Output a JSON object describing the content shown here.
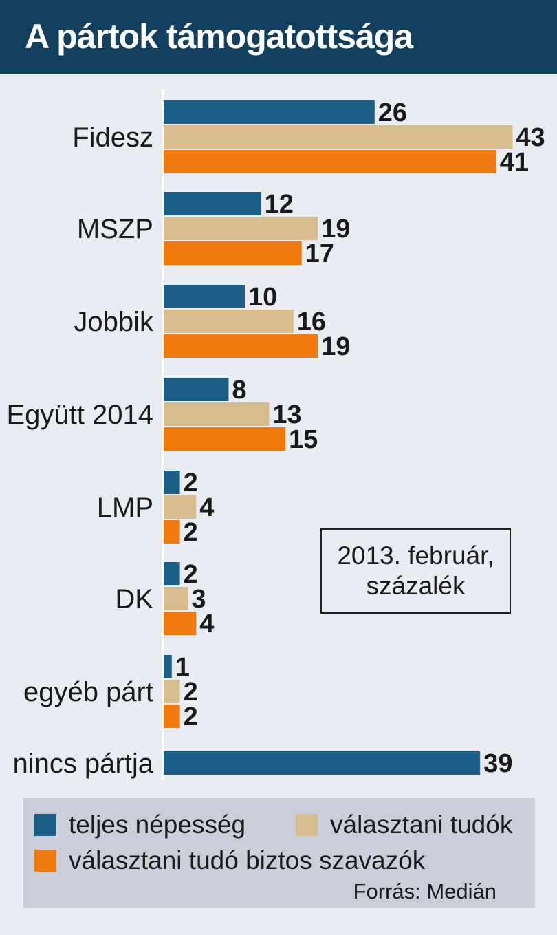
{
  "header": {
    "title": "A pártok támogatottsága"
  },
  "chart_data": {
    "type": "bar",
    "orientation": "horizontal",
    "title": "A pártok támogatottsága",
    "categories": [
      "Fidesz",
      "MSZP",
      "Jobbik",
      "Együtt 2014",
      "LMP",
      "DK",
      "egyéb párt",
      "nincs pártja"
    ],
    "series": [
      {
        "name": "teljes népesség",
        "color": "#1b5f86",
        "values": [
          26,
          12,
          10,
          8,
          2,
          2,
          1,
          39
        ]
      },
      {
        "name": "választani tudók",
        "color": "#d7bc8d",
        "values": [
          43,
          19,
          16,
          13,
          4,
          3,
          2,
          null
        ]
      },
      {
        "name": "választani tudó biztos szavazók",
        "color": "#f07a10",
        "values": [
          41,
          17,
          19,
          15,
          2,
          4,
          2,
          null
        ]
      }
    ],
    "legend_position": "bottom",
    "grid": false
  },
  "note": {
    "line1": "2013. február,",
    "line2": "százalék"
  },
  "source": "Forrás: Medián"
}
